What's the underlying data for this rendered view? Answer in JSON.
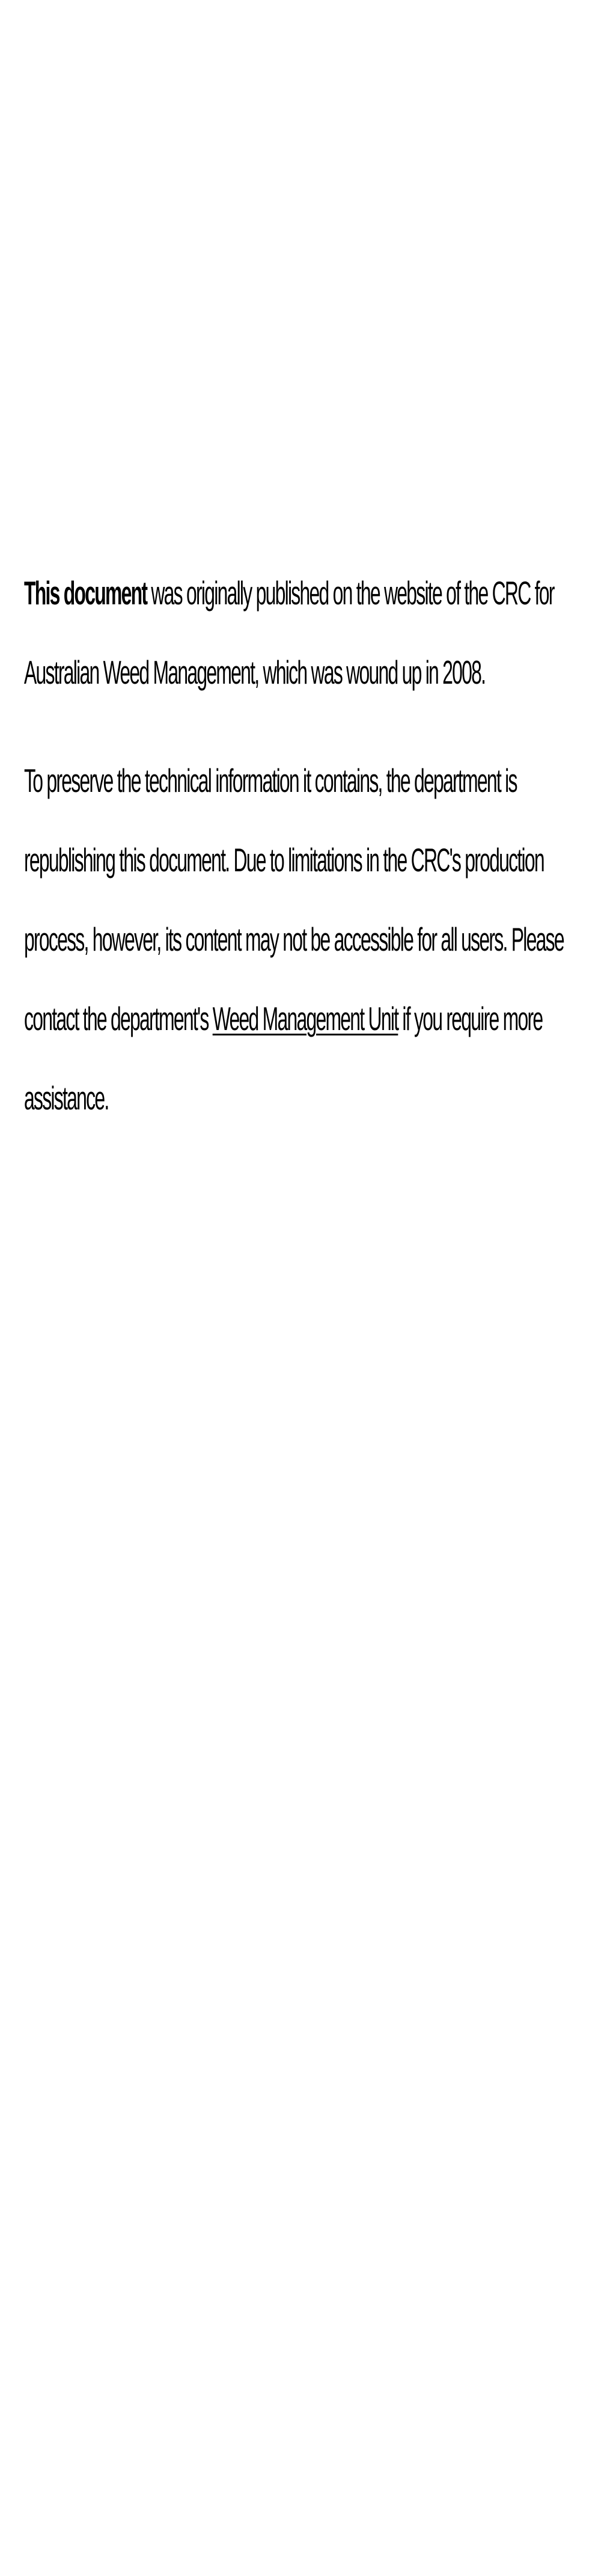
{
  "document": {
    "text_color": "#000000",
    "background_color": "#ffffff",
    "paragraphs": [
      {
        "lead_bold": "This document",
        "rest": " was originally published on the website of the CRC for Australian Weed Management, which was wound up in 2008."
      },
      {
        "before_link": "To preserve the technical information it contains, the department is republishing this document. Due to limitations in the CRC's production process, however, its content may not be accessible for all users. Please contact the department's ",
        "link_text": "Weed Management Unit",
        "after_link": " if you require more assistance."
      }
    ]
  }
}
